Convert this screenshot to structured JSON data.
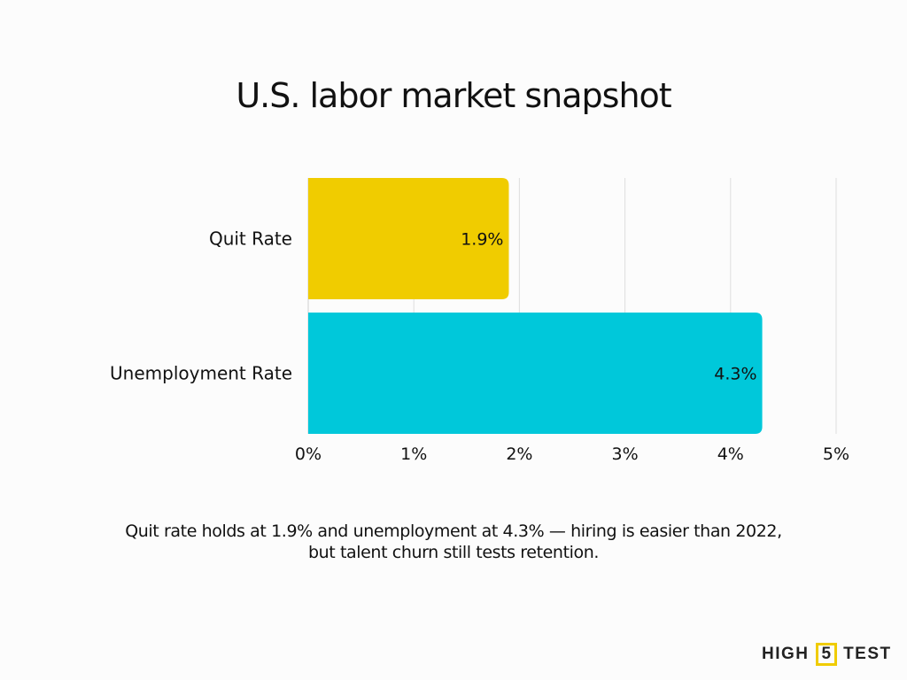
{
  "chart_data": {
    "type": "bar",
    "orientation": "horizontal",
    "title": "U.S. labor market snapshot",
    "categories": [
      "Quit Rate",
      "Unemployment Rate"
    ],
    "values": [
      1.9,
      4.3
    ],
    "data_labels": [
      "1.9%",
      "4.3%"
    ],
    "colors": [
      "#f0cc00",
      "#00c8da"
    ],
    "xlim": [
      0,
      5
    ],
    "x_ticks": [
      0,
      1,
      2,
      3,
      4,
      5
    ],
    "x_tick_labels": [
      "0%",
      "1%",
      "2%",
      "3%",
      "4%",
      "5%"
    ],
    "xlabel": "",
    "ylabel": "",
    "grid": "vertical"
  },
  "caption": {
    "line1": "Quit rate holds at 1.9% and unemployment at 4.3% — hiring is easier than 2022,",
    "line2": "but talent churn still tests retention."
  },
  "logo": {
    "left": "HIGH",
    "mid": "5",
    "right": "TEST"
  }
}
